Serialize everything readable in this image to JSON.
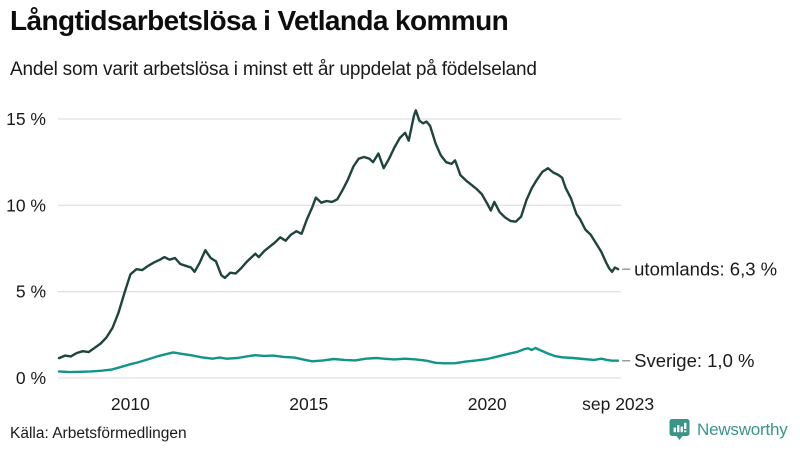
{
  "footer": {
    "source": "Källa: Arbetsförmedlingen",
    "brand": "Newsworthy"
  },
  "chart_data": {
    "type": "line",
    "title": "Långtidsarbetslösa i Vetlanda kommun",
    "subtitle": "Andel som varit arbetslösa i minst ett år uppdelat på födelseland",
    "grid": true,
    "legend_position": "right-of-line-ends",
    "xlim": [
      2008,
      2023.75
    ],
    "ylim": [
      0,
      15.75
    ],
    "x_ticks": [
      {
        "t": 2010,
        "label": "2010"
      },
      {
        "t": 2015,
        "label": "2015"
      },
      {
        "t": 2020,
        "label": "2020"
      },
      {
        "t": 2023.67,
        "label": "sep 2023"
      }
    ],
    "y_ticks": [
      {
        "v": 0,
        "label": "0 %"
      },
      {
        "v": 5,
        "label": "5 %"
      },
      {
        "v": 10,
        "label": "10 %"
      },
      {
        "v": 15,
        "label": "15 %"
      }
    ],
    "colors": {
      "grid": "#e2e2e6",
      "tick_dash": "#999999",
      "text": "#1a1a1a",
      "brand": "#3b948a"
    },
    "series": [
      {
        "name": "utomlands",
        "color": "#1e443d",
        "end_label": "utomlands: 6,3 %",
        "end_value": 6.3,
        "points": [
          [
            2008.0,
            1.15
          ],
          [
            2008.17,
            1.3
          ],
          [
            2008.33,
            1.25
          ],
          [
            2008.5,
            1.45
          ],
          [
            2008.67,
            1.55
          ],
          [
            2008.83,
            1.5
          ],
          [
            2009.0,
            1.75
          ],
          [
            2009.17,
            2.0
          ],
          [
            2009.33,
            2.35
          ],
          [
            2009.5,
            2.9
          ],
          [
            2009.67,
            3.8
          ],
          [
            2009.83,
            4.9
          ],
          [
            2010.0,
            6.0
          ],
          [
            2010.17,
            6.3
          ],
          [
            2010.33,
            6.25
          ],
          [
            2010.5,
            6.5
          ],
          [
            2010.67,
            6.7
          ],
          [
            2010.83,
            6.85
          ],
          [
            2010.95,
            7.0
          ],
          [
            2011.1,
            6.85
          ],
          [
            2011.25,
            6.95
          ],
          [
            2011.4,
            6.6
          ],
          [
            2011.55,
            6.5
          ],
          [
            2011.7,
            6.4
          ],
          [
            2011.8,
            6.15
          ],
          [
            2011.95,
            6.7
          ],
          [
            2012.1,
            7.4
          ],
          [
            2012.25,
            6.95
          ],
          [
            2012.4,
            6.75
          ],
          [
            2012.55,
            5.95
          ],
          [
            2012.65,
            5.8
          ],
          [
            2012.8,
            6.1
          ],
          [
            2012.95,
            6.05
          ],
          [
            2013.1,
            6.35
          ],
          [
            2013.25,
            6.7
          ],
          [
            2013.4,
            7.0
          ],
          [
            2013.5,
            7.2
          ],
          [
            2013.6,
            7.0
          ],
          [
            2013.75,
            7.35
          ],
          [
            2013.9,
            7.6
          ],
          [
            2014.05,
            7.85
          ],
          [
            2014.2,
            8.15
          ],
          [
            2014.35,
            7.95
          ],
          [
            2014.5,
            8.3
          ],
          [
            2014.65,
            8.5
          ],
          [
            2014.8,
            8.35
          ],
          [
            2014.95,
            9.2
          ],
          [
            2015.1,
            9.9
          ],
          [
            2015.2,
            10.45
          ],
          [
            2015.35,
            10.15
          ],
          [
            2015.5,
            10.25
          ],
          [
            2015.65,
            10.2
          ],
          [
            2015.8,
            10.35
          ],
          [
            2015.95,
            10.9
          ],
          [
            2016.1,
            11.5
          ],
          [
            2016.25,
            12.25
          ],
          [
            2016.4,
            12.7
          ],
          [
            2016.55,
            12.8
          ],
          [
            2016.7,
            12.7
          ],
          [
            2016.8,
            12.5
          ],
          [
            2016.95,
            13.0
          ],
          [
            2017.1,
            12.15
          ],
          [
            2017.25,
            12.7
          ],
          [
            2017.4,
            13.35
          ],
          [
            2017.55,
            13.9
          ],
          [
            2017.7,
            14.2
          ],
          [
            2017.8,
            13.75
          ],
          [
            2017.95,
            15.2
          ],
          [
            2018.0,
            15.5
          ],
          [
            2018.1,
            14.9
          ],
          [
            2018.2,
            14.75
          ],
          [
            2018.3,
            14.85
          ],
          [
            2018.4,
            14.6
          ],
          [
            2018.55,
            13.6
          ],
          [
            2018.7,
            12.9
          ],
          [
            2018.85,
            12.5
          ],
          [
            2019.0,
            12.4
          ],
          [
            2019.1,
            12.6
          ],
          [
            2019.25,
            11.75
          ],
          [
            2019.4,
            11.45
          ],
          [
            2019.55,
            11.2
          ],
          [
            2019.7,
            10.95
          ],
          [
            2019.85,
            10.65
          ],
          [
            2020.0,
            10.1
          ],
          [
            2020.1,
            9.7
          ],
          [
            2020.2,
            10.2
          ],
          [
            2020.35,
            9.6
          ],
          [
            2020.5,
            9.3
          ],
          [
            2020.65,
            9.1
          ],
          [
            2020.8,
            9.05
          ],
          [
            2020.95,
            9.35
          ],
          [
            2021.1,
            10.3
          ],
          [
            2021.25,
            11.0
          ],
          [
            2021.4,
            11.5
          ],
          [
            2021.55,
            11.95
          ],
          [
            2021.7,
            12.15
          ],
          [
            2021.85,
            11.9
          ],
          [
            2022.0,
            11.75
          ],
          [
            2022.1,
            11.6
          ],
          [
            2022.2,
            11.0
          ],
          [
            2022.35,
            10.4
          ],
          [
            2022.5,
            9.5
          ],
          [
            2022.6,
            9.2
          ],
          [
            2022.75,
            8.6
          ],
          [
            2022.9,
            8.3
          ],
          [
            2023.05,
            7.8
          ],
          [
            2023.2,
            7.3
          ],
          [
            2023.33,
            6.7
          ],
          [
            2023.42,
            6.35
          ],
          [
            2023.5,
            6.15
          ],
          [
            2023.58,
            6.4
          ],
          [
            2023.67,
            6.3
          ]
        ]
      },
      {
        "name": "Sverige",
        "color": "#119489",
        "end_label": "Sverige: 1,0 %",
        "end_value": 1.0,
        "points": [
          [
            2008.0,
            0.38
          ],
          [
            2008.3,
            0.34
          ],
          [
            2008.6,
            0.36
          ],
          [
            2008.9,
            0.38
          ],
          [
            2009.2,
            0.42
          ],
          [
            2009.5,
            0.5
          ],
          [
            2009.8,
            0.68
          ],
          [
            2010.0,
            0.8
          ],
          [
            2010.2,
            0.9
          ],
          [
            2010.4,
            1.02
          ],
          [
            2010.6,
            1.15
          ],
          [
            2010.8,
            1.28
          ],
          [
            2011.0,
            1.38
          ],
          [
            2011.2,
            1.48
          ],
          [
            2011.35,
            1.43
          ],
          [
            2011.5,
            1.38
          ],
          [
            2011.75,
            1.3
          ],
          [
            2012.0,
            1.2
          ],
          [
            2012.3,
            1.12
          ],
          [
            2012.5,
            1.18
          ],
          [
            2012.7,
            1.12
          ],
          [
            2013.0,
            1.16
          ],
          [
            2013.3,
            1.26
          ],
          [
            2013.5,
            1.32
          ],
          [
            2013.75,
            1.28
          ],
          [
            2014.0,
            1.3
          ],
          [
            2014.3,
            1.22
          ],
          [
            2014.6,
            1.18
          ],
          [
            2014.9,
            1.05
          ],
          [
            2015.1,
            0.97
          ],
          [
            2015.4,
            1.02
          ],
          [
            2015.7,
            1.1
          ],
          [
            2016.0,
            1.05
          ],
          [
            2016.3,
            1.02
          ],
          [
            2016.6,
            1.12
          ],
          [
            2016.9,
            1.16
          ],
          [
            2017.1,
            1.12
          ],
          [
            2017.4,
            1.08
          ],
          [
            2017.7,
            1.12
          ],
          [
            2018.0,
            1.08
          ],
          [
            2018.3,
            1.0
          ],
          [
            2018.55,
            0.88
          ],
          [
            2018.8,
            0.85
          ],
          [
            2019.1,
            0.86
          ],
          [
            2019.4,
            0.95
          ],
          [
            2019.7,
            1.02
          ],
          [
            2020.0,
            1.1
          ],
          [
            2020.3,
            1.25
          ],
          [
            2020.6,
            1.4
          ],
          [
            2020.85,
            1.52
          ],
          [
            2021.05,
            1.68
          ],
          [
            2021.15,
            1.72
          ],
          [
            2021.25,
            1.62
          ],
          [
            2021.35,
            1.74
          ],
          [
            2021.5,
            1.6
          ],
          [
            2021.7,
            1.42
          ],
          [
            2021.9,
            1.27
          ],
          [
            2022.1,
            1.2
          ],
          [
            2022.4,
            1.16
          ],
          [
            2022.7,
            1.1
          ],
          [
            2023.0,
            1.05
          ],
          [
            2023.2,
            1.12
          ],
          [
            2023.35,
            1.05
          ],
          [
            2023.5,
            1.0
          ],
          [
            2023.67,
            1.0
          ]
        ]
      }
    ]
  }
}
